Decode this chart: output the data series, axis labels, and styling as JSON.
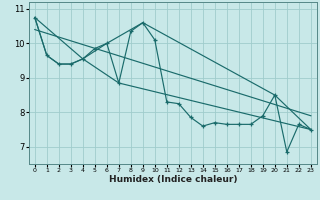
{
  "xlabel": "Humidex (Indice chaleur)",
  "bg_color": "#c8e8e8",
  "grid_color": "#a0cccc",
  "line_color": "#1a6b6b",
  "xlim": [
    -0.5,
    23.5
  ],
  "ylim": [
    6.5,
    11.2
  ],
  "yticks": [
    7,
    8,
    9,
    10,
    11
  ],
  "xtick_labels": [
    "0",
    "1",
    "2",
    "3",
    "4",
    "5",
    "6",
    "7",
    "8",
    "9",
    "10",
    "11",
    "12",
    "13",
    "14",
    "15",
    "16",
    "17",
    "18",
    "19",
    "20",
    "21",
    "22",
    "23"
  ],
  "main_x": [
    0,
    1,
    2,
    3,
    4,
    5,
    6,
    7,
    8,
    9,
    10,
    11,
    12,
    13,
    14,
    15,
    16,
    17,
    18,
    19,
    20,
    21,
    22,
    23
  ],
  "main_y": [
    10.75,
    9.65,
    9.4,
    9.4,
    9.55,
    9.85,
    10.0,
    8.85,
    10.35,
    10.6,
    10.1,
    8.3,
    8.25,
    7.85,
    7.6,
    7.7,
    7.65,
    7.65,
    7.65,
    7.9,
    8.5,
    6.85,
    7.65,
    7.5
  ],
  "trend_x": [
    0,
    23
  ],
  "trend_y": [
    10.4,
    7.9
  ],
  "line2_x": [
    0,
    1,
    2,
    3,
    4,
    7,
    23
  ],
  "line2_y": [
    10.75,
    9.65,
    9.4,
    9.4,
    9.55,
    8.85,
    7.5
  ],
  "line3_x": [
    0,
    4,
    6,
    9,
    20,
    23
  ],
  "line3_y": [
    10.75,
    9.55,
    10.0,
    10.6,
    8.5,
    7.5
  ]
}
